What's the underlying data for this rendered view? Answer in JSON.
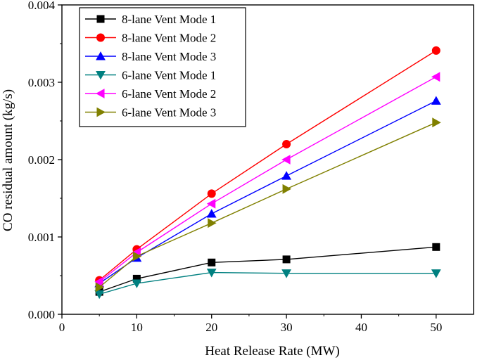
{
  "chart_data": {
    "type": "line",
    "title": "",
    "xlabel": "Heat Release Rate (MW)",
    "ylabel": "CO residual amount (kg/s)",
    "xlim": [
      0,
      55
    ],
    "ylim": [
      0,
      0.004
    ],
    "xticks": [
      0,
      10,
      20,
      30,
      40,
      50
    ],
    "yticks": [
      0,
      0.001,
      0.002,
      0.003,
      0.004
    ],
    "xtick_labels": [
      "0",
      "10",
      "20",
      "30",
      "40",
      "50"
    ],
    "ytick_labels": [
      "0.000",
      "0.001",
      "0.002",
      "0.003",
      "0.004"
    ],
    "x": [
      5,
      10,
      20,
      30,
      50
    ],
    "legend_position": "top-left",
    "series": [
      {
        "name": "8-lane Vent Mode 1",
        "color": "#000000",
        "marker": "square",
        "values": [
          0.00029,
          0.00046,
          0.00067,
          0.00071,
          0.00087
        ]
      },
      {
        "name": "8-lane Vent Mode 2",
        "color": "#ff0000",
        "marker": "circle",
        "values": [
          0.00044,
          0.00084,
          0.00156,
          0.0022,
          0.00341
        ]
      },
      {
        "name": "8-lane Vent Mode 3",
        "color": "#0000ff",
        "marker": "triangle-up",
        "values": [
          0.0004,
          0.00073,
          0.0013,
          0.00179,
          0.00276
        ]
      },
      {
        "name": "6-lane Vent Mode 1",
        "color": "#008080",
        "marker": "triangle-down",
        "values": [
          0.00026,
          0.0004,
          0.00054,
          0.00053,
          0.00053
        ]
      },
      {
        "name": "6-lane Vent Mode 2",
        "color": "#ff00ff",
        "marker": "triangle-left",
        "values": [
          0.00042,
          0.0008,
          0.00143,
          0.002,
          0.00307
        ]
      },
      {
        "name": "6-lane Vent Mode 3",
        "color": "#808000",
        "marker": "triangle-right",
        "values": [
          0.00035,
          0.00075,
          0.00118,
          0.00162,
          0.00248
        ]
      }
    ]
  }
}
